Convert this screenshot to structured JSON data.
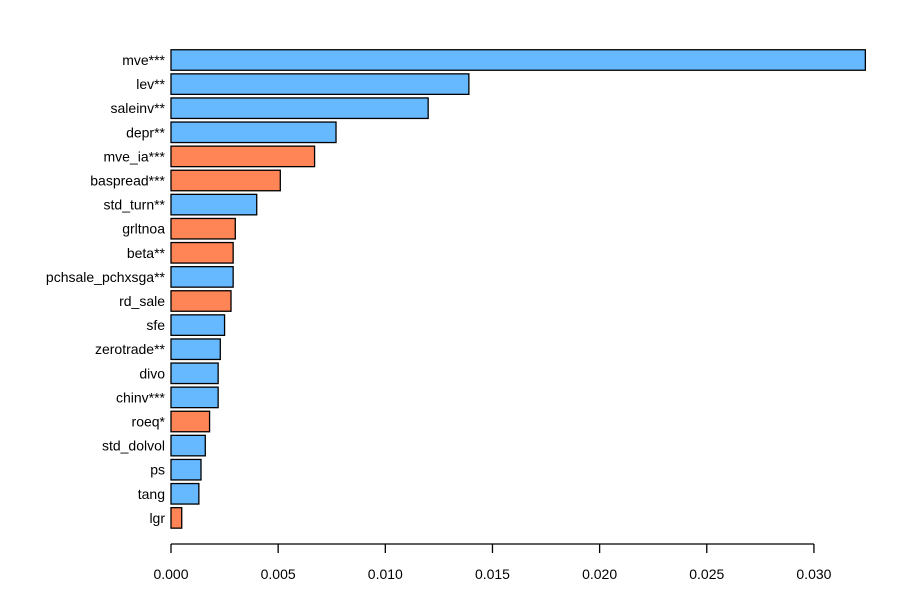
{
  "chart_data": {
    "type": "bar",
    "orientation": "horizontal",
    "title": "",
    "xlabel": "",
    "ylabel": "",
    "xlim": [
      0,
      0.0325
    ],
    "xticks": [
      "0.000",
      "0.005",
      "0.010",
      "0.015",
      "0.020",
      "0.025",
      "0.030"
    ],
    "grid": false,
    "colors": {
      "blue": "#66b8ff",
      "orange": "#ff8456"
    },
    "categories": [
      "mve***",
      "lev**",
      "saleinv**",
      "depr**",
      "mve_ia***",
      "baspread***",
      "std_turn**",
      "grltnoa",
      "beta**",
      "pchsale_pchxsga**",
      "rd_sale",
      "sfe",
      "zerotrade**",
      "divo",
      "chinv***",
      "roeq*",
      "std_dolvol",
      "ps",
      "tang",
      "lgr"
    ],
    "values": [
      0.0324,
      0.0139,
      0.012,
      0.0077,
      0.0067,
      0.0051,
      0.004,
      0.003,
      0.0029,
      0.0029,
      0.0028,
      0.0025,
      0.0023,
      0.0022,
      0.0022,
      0.0018,
      0.0016,
      0.0014,
      0.0013,
      0.0005
    ],
    "bar_colors": [
      "blue",
      "blue",
      "blue",
      "blue",
      "orange",
      "orange",
      "blue",
      "orange",
      "orange",
      "blue",
      "orange",
      "blue",
      "blue",
      "blue",
      "blue",
      "orange",
      "blue",
      "blue",
      "blue",
      "orange"
    ]
  }
}
